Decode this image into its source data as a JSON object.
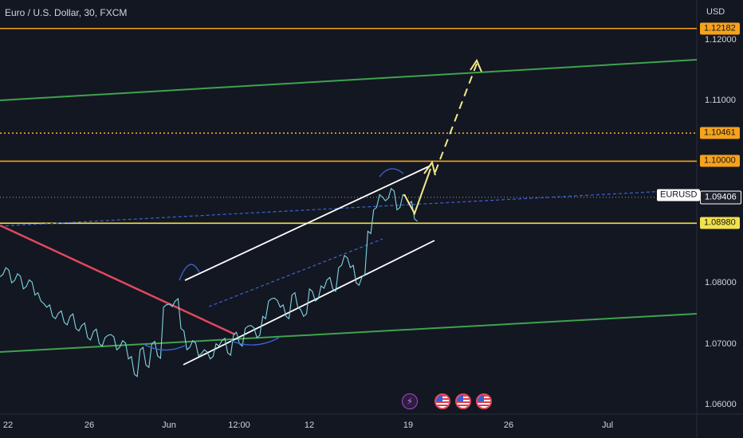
{
  "header": {
    "title": "Euro / U.S. Dollar, 30, FXCM",
    "currency": "USD"
  },
  "symbol_label": "EURUSD",
  "colors": {
    "background": "#131722",
    "price": "#7fd6e0",
    "resistance": "#f7a21a",
    "support": "#f3e14a",
    "trend_green": "#3fa34d",
    "downtrend": "#e0495a",
    "channel": "#ffffff",
    "projection": "#f3e98a"
  },
  "chart_data": {
    "type": "line",
    "title": "Euro / U.S. Dollar, 30, FXCM",
    "xlabel": "",
    "ylabel": "",
    "ylim": [
      1.0545,
      1.1265
    ],
    "x_ticks": [
      "22",
      "26",
      "Jun",
      "12:00",
      "12",
      "19",
      "26",
      "Jul"
    ],
    "y_ticks": [
      "1.12000",
      "1.11000",
      "1.08000",
      "1.07000",
      "1.06000"
    ],
    "price_labels": [
      {
        "value": "1.12182",
        "style": "resistance"
      },
      {
        "value": "1.10461",
        "style": "resistance"
      },
      {
        "value": "1.10000",
        "style": "resistance"
      },
      {
        "value": "1.09406",
        "style": "last"
      },
      {
        "value": "1.08980",
        "style": "support"
      }
    ],
    "series": [
      {
        "values": [
          1.081,
          1.0825,
          1.08,
          1.0815,
          1.079,
          1.0805,
          1.078,
          1.077,
          1.076,
          1.0745,
          1.075,
          1.0735,
          1.0745,
          1.0725,
          1.073,
          1.071,
          1.072,
          1.07,
          1.071,
          1.0715,
          1.069,
          1.0705,
          1.0675,
          1.065,
          1.069,
          1.0665,
          1.07,
          1.068,
          1.076,
          1.0765,
          1.077,
          1.0725,
          1.069,
          1.0705,
          1.068,
          1.069,
          1.0675,
          1.07,
          1.0705,
          1.0685,
          1.0715,
          1.07,
          1.0725,
          1.073,
          1.071,
          1.0745,
          1.077,
          1.0775,
          1.076,
          1.0745,
          1.078,
          1.076,
          1.0745,
          1.079,
          1.077,
          1.0795,
          1.0805,
          1.079,
          1.0825,
          1.0845,
          1.0825,
          1.08,
          1.081,
          1.0885,
          1.092,
          1.0945,
          1.0935,
          1.0955,
          1.092,
          1.0945,
          1.093,
          1.0905
        ]
      }
    ],
    "levels": [
      {
        "value": 1.12182,
        "style": "solid",
        "color": "resistance"
      },
      {
        "value": 1.10461,
        "style": "dotted",
        "color": "resistance"
      },
      {
        "value": 1.1,
        "style": "solid",
        "color": "resistance"
      },
      {
        "value": 1.09406,
        "style": "dotted",
        "color": "last"
      },
      {
        "value": 1.0898,
        "style": "solid",
        "color": "support"
      }
    ],
    "grid": false,
    "legend": "none"
  }
}
